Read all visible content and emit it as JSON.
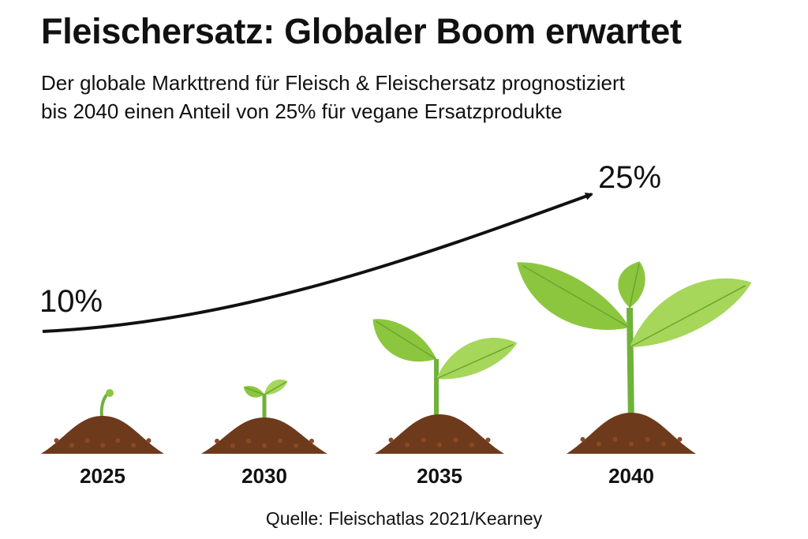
{
  "title": "Fleischersatz: Globaler Boom erwartet",
  "subtitle_lines": [
    "Der globale Markttrend für Fleisch & Fleischersatz prognostiziert",
    "bis 2040 einen Anteil von 25% für vegane Ersatzprodukte"
  ],
  "source": "Quelle: Fleischatlas 2021/Kearney",
  "colors": {
    "text": "#111111",
    "soil": "#6e3a1c",
    "soil_light": "#8a4a24",
    "leaf": "#8cc63f",
    "leaf_light": "#a6d65a",
    "stem": "#6fb23a",
    "arrow": "#111111"
  },
  "chart_data": {
    "type": "line",
    "x": [
      2025,
      2030,
      2035,
      2040
    ],
    "categories": [
      "2025",
      "2030",
      "2035",
      "2040"
    ],
    "endpoint_labels": [
      "10%",
      "25%"
    ],
    "values": [
      10,
      null,
      null,
      25
    ],
    "unit": "%",
    "title": "Fleischersatz: Globaler Boom erwartet",
    "xlabel": "",
    "ylabel": "",
    "grid": false,
    "icons": [
      "sprout-small-icon",
      "sprout-two-leaf-icon",
      "seedling-icon",
      "plant-large-icon"
    ]
  }
}
